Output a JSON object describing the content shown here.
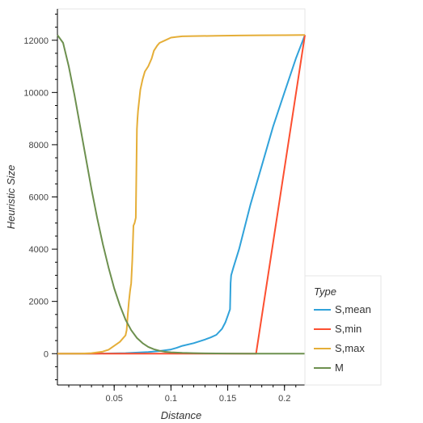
{
  "chart_data": {
    "type": "line",
    "xlabel": "Distance",
    "ylabel": "Heuristic Size",
    "xlim": [
      0.0,
      0.218
    ],
    "ylim": [
      -1200,
      13200
    ],
    "x_ticks": [
      0.05,
      0.1,
      0.15,
      0.2
    ],
    "x_tick_labels": [
      "0.05",
      "0.1",
      "0.15",
      "0.2"
    ],
    "y_ticks": [
      0,
      2000,
      4000,
      6000,
      8000,
      10000,
      12000
    ],
    "y_tick_labels": [
      "0",
      "2000",
      "4000",
      "6000",
      "8000",
      "10000",
      "12000"
    ],
    "grid": false,
    "legend": {
      "title": "Type",
      "placement": "right"
    },
    "series": [
      {
        "name": "S,mean",
        "color": "#30a2da",
        "x": [
          0.0,
          0.03,
          0.06,
          0.08,
          0.09,
          0.1,
          0.105,
          0.11,
          0.12,
          0.125,
          0.13,
          0.135,
          0.14,
          0.145,
          0.148,
          0.15,
          0.152,
          0.1525,
          0.153,
          0.155,
          0.16,
          0.17,
          0.18,
          0.19,
          0.2,
          0.21,
          0.218
        ],
        "y": [
          0,
          0,
          20,
          60,
          100,
          160,
          220,
          300,
          400,
          470,
          540,
          620,
          720,
          950,
          1200,
          1450,
          1700,
          2700,
          3000,
          3300,
          4000,
          5700,
          7200,
          8700,
          10000,
          11300,
          12200
        ]
      },
      {
        "name": "S,min",
        "color": "#fc4f30",
        "x": [
          0.0,
          0.175,
          0.218
        ],
        "y": [
          0,
          0,
          12200
        ]
      },
      {
        "name": "S,max",
        "color": "#e5ae38",
        "x": [
          0.0,
          0.02,
          0.03,
          0.04,
          0.045,
          0.05,
          0.055,
          0.06,
          0.061,
          0.062,
          0.063,
          0.064,
          0.065,
          0.066,
          0.067,
          0.068,
          0.069,
          0.07,
          0.0705,
          0.071,
          0.072,
          0.073,
          0.075,
          0.077,
          0.08,
          0.083,
          0.085,
          0.088,
          0.09,
          0.095,
          0.1,
          0.105,
          0.11,
          0.12,
          0.14,
          0.16,
          0.18,
          0.2,
          0.218
        ],
        "y": [
          0,
          0,
          20,
          80,
          150,
          300,
          450,
          700,
          900,
          1500,
          2000,
          2400,
          2700,
          3600,
          4900,
          5000,
          5200,
          8600,
          9000,
          9300,
          9700,
          10100,
          10500,
          10800,
          11000,
          11300,
          11600,
          11800,
          11900,
          12000,
          12100,
          12130,
          12150,
          12160,
          12170,
          12180,
          12190,
          12195,
          12200
        ]
      },
      {
        "name": "M",
        "color": "#6d904f",
        "x": [
          0.0,
          0.005,
          0.01,
          0.015,
          0.02,
          0.025,
          0.03,
          0.035,
          0.04,
          0.045,
          0.05,
          0.055,
          0.06,
          0.065,
          0.07,
          0.075,
          0.08,
          0.085,
          0.09,
          0.095,
          0.1,
          0.11,
          0.12,
          0.13,
          0.15,
          0.17,
          0.2,
          0.218
        ],
        "y": [
          12200,
          11900,
          11000,
          9900,
          8700,
          7500,
          6300,
          5200,
          4200,
          3300,
          2500,
          1850,
          1300,
          900,
          600,
          400,
          260,
          170,
          110,
          70,
          50,
          30,
          20,
          12,
          6,
          3,
          0,
          0
        ]
      }
    ]
  }
}
